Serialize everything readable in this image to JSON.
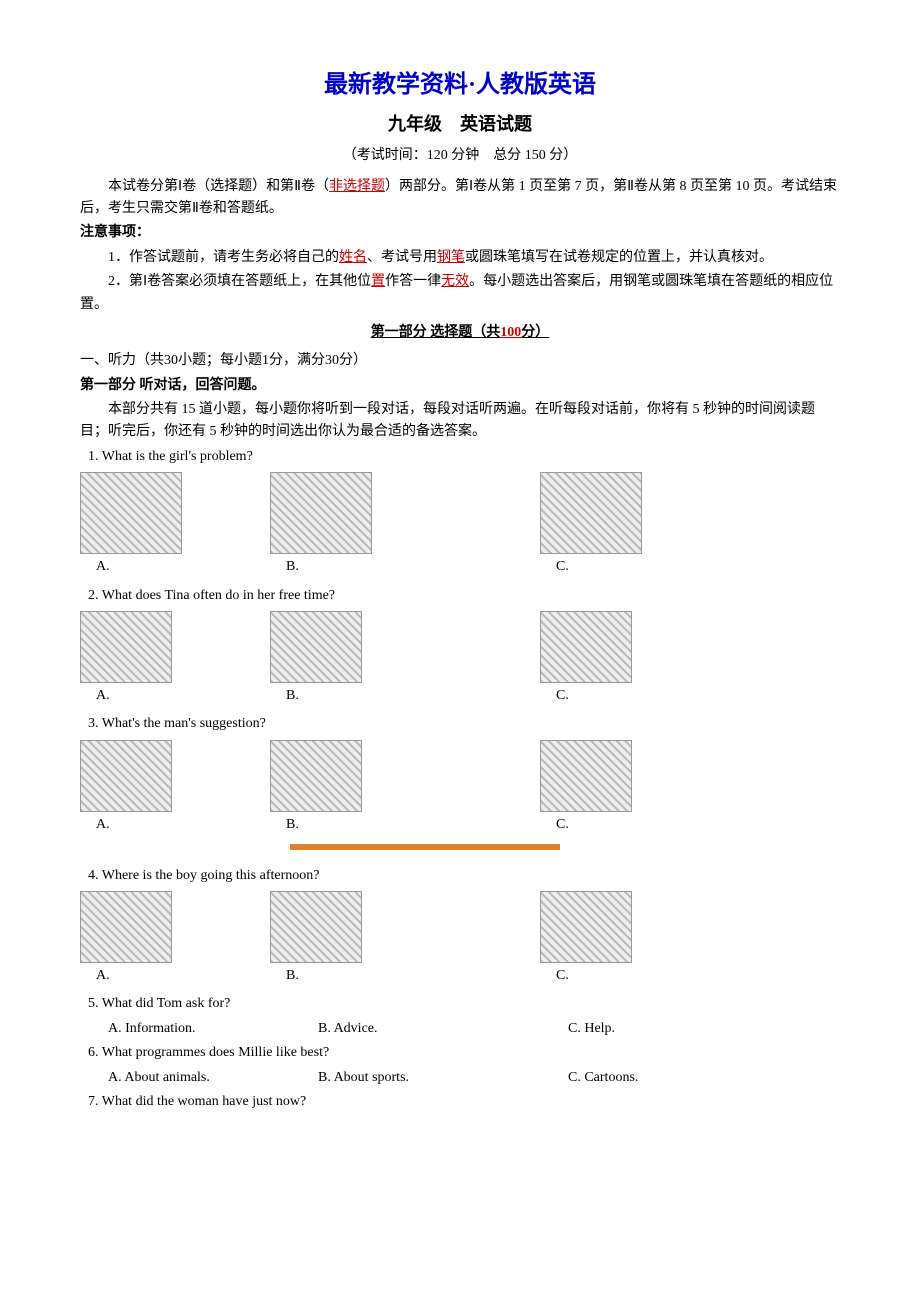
{
  "header": {
    "main_title": "最新教学资料·人教版英语",
    "sub_title": "九年级　英语试题",
    "exam_info": "（考试时间：120 分钟　总分 150 分）"
  },
  "intro": {
    "para1_pre": "本试卷分第Ⅰ卷（选择题）和第Ⅱ卷（",
    "para1_mid": "非选择题",
    "para1_post": "）两部分。第Ⅰ卷从第 1 页至第 7 页，第Ⅱ卷从第 8 页至第 10 页。考试结束后，考生只需交第Ⅱ卷和答题纸。",
    "notice_label": "注意事项：",
    "item1_pre": "1．作答试题前，请考生务必将自己的",
    "item1_w1": "姓名",
    "item1_mid1": "、考试号用",
    "item1_w2": "钢笔",
    "item1_mid2": "或圆珠笔填写在试卷规定的位置上，并认真核对。",
    "item2_pre": "2．第Ⅰ卷答案必须填在答题纸上，在其他位",
    "item2_w1": "置",
    "item2_mid1": "作答一律",
    "item2_w2": "无效",
    "item2_post": "。每小题选出答案后，用钢笔或圆珠笔填在答题纸的相应位置。"
  },
  "sections": {
    "part1_heading_pre": "第一部分  选择题（共",
    "part1_heading_score": "100",
    "part1_heading_post": "分）",
    "listening_label": "一、听力（共30小题；每小题1分，满分30分）",
    "sub1_label": "第一部分  听对话，回答问题。",
    "sub1_instr": "本部分共有 15 道小题，每小题你将听到一段对话，每段对话听两遍。在听每段对话前，你将有 5 秒钟的时间阅读题目；听完后，你还有 5 秒钟的时间选出你认为最合适的备选答案。"
  },
  "q1": {
    "stem": "1. What is the girl's problem?",
    "a": "A.",
    "b": "B.",
    "c": "C."
  },
  "q2": {
    "stem": "2. What does Tina often do in her free time?",
    "a": "A.",
    "b": "B.",
    "c": "C."
  },
  "q3": {
    "stem": "3. What's the man's suggestion?",
    "a": "A.",
    "b": "B.",
    "c": "C."
  },
  "q4": {
    "stem": "4. Where is the boy going this afternoon?",
    "a": "A.",
    "b": "B.",
    "c": "C."
  },
  "q5": {
    "stem": "5. What did Tom ask for?",
    "a": "A. Information.",
    "b": "B. Advice.",
    "c": "C. Help."
  },
  "q6": {
    "stem": "6. What programmes does Millie like best?",
    "a": "A. About animals.",
    "b": "B. About sports.",
    "c": "C. Cartoons."
  },
  "q7": {
    "stem": "7. What did the woman have just now?"
  }
}
